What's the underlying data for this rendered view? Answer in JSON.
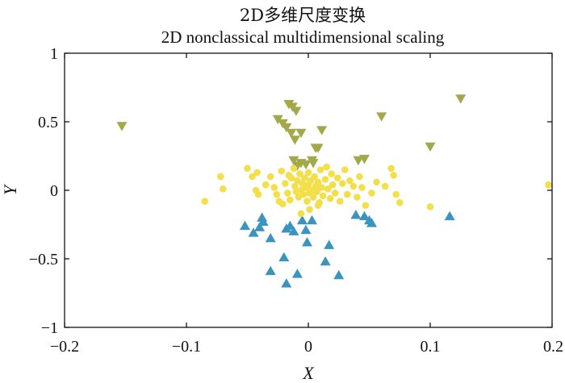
{
  "chart_data": {
    "type": "scatter",
    "title": "2D多维尺度变换",
    "subtitle": "2D nonclassical multidimensional scaling",
    "xlabel": "X",
    "ylabel": "Y",
    "xlim": [
      -0.2,
      0.2
    ],
    "ylim": [
      -1,
      1
    ],
    "xticks": [
      -0.2,
      -0.1,
      0,
      0.1,
      0.2
    ],
    "xtick_labels": [
      "−0.2",
      "−0.1",
      "0",
      "0.1",
      "0.2"
    ],
    "yticks": [
      -1,
      -0.5,
      0,
      0.5,
      1
    ],
    "ytick_labels": [
      "−1",
      "−0.5",
      "0",
      "0.5",
      "1"
    ],
    "grid": false,
    "series": [
      {
        "marker": "triangle-down",
        "color": "#a3a84a",
        "points": [
          [
            -0.153,
            0.47
          ],
          [
            -0.016,
            0.63
          ],
          [
            -0.013,
            0.61
          ],
          [
            -0.01,
            0.58
          ],
          [
            -0.025,
            0.52
          ],
          [
            -0.021,
            0.49
          ],
          [
            -0.018,
            0.46
          ],
          [
            -0.014,
            0.42
          ],
          [
            -0.011,
            0.37
          ],
          [
            -0.006,
            0.42
          ],
          [
            0.011,
            0.44
          ],
          [
            0.008,
            0.31
          ],
          [
            0.006,
            0.31
          ],
          [
            -0.012,
            0.22
          ],
          [
            -0.006,
            0.2
          ],
          [
            -0.002,
            0.19
          ],
          [
            0.003,
            0.22
          ],
          [
            0.041,
            0.22
          ],
          [
            0.046,
            0.23
          ],
          [
            0.06,
            0.54
          ],
          [
            0.1,
            0.32
          ],
          [
            0.125,
            0.67
          ],
          [
            -0.009,
            0.18
          ],
          [
            0.004,
            0.2
          ]
        ]
      },
      {
        "marker": "triangle-up",
        "color": "#3b94bd",
        "points": [
          [
            -0.052,
            -0.26
          ],
          [
            -0.045,
            -0.31
          ],
          [
            -0.04,
            -0.27
          ],
          [
            -0.037,
            -0.23
          ],
          [
            -0.038,
            -0.2
          ],
          [
            -0.031,
            -0.35
          ],
          [
            -0.018,
            -0.28
          ],
          [
            -0.015,
            -0.26
          ],
          [
            -0.005,
            -0.22
          ],
          [
            -0.002,
            -0.29
          ],
          [
            0.003,
            -0.22
          ],
          [
            -0.001,
            -0.38
          ],
          [
            -0.012,
            -0.3
          ],
          [
            0.017,
            -0.4
          ],
          [
            0.014,
            -0.52
          ],
          [
            0.025,
            -0.62
          ],
          [
            -0.02,
            -0.49
          ],
          [
            -0.031,
            -0.59
          ],
          [
            -0.018,
            -0.68
          ],
          [
            -0.009,
            -0.61
          ],
          [
            0.039,
            -0.18
          ],
          [
            0.046,
            -0.19
          ],
          [
            0.05,
            -0.22
          ],
          [
            0.052,
            -0.24
          ],
          [
            0.116,
            -0.19
          ]
        ]
      },
      {
        "marker": "circle",
        "color": "#f2df4a",
        "points": [
          [
            -0.085,
            -0.08
          ],
          [
            -0.072,
            0.1
          ],
          [
            -0.07,
            0.01
          ],
          [
            -0.05,
            0.16
          ],
          [
            -0.046,
            0.1
          ],
          [
            -0.042,
            0.13
          ],
          [
            -0.043,
            0.0
          ],
          [
            -0.041,
            -0.03
          ],
          [
            -0.035,
            0.04
          ],
          [
            -0.031,
            0.1
          ],
          [
            -0.028,
            0.02
          ],
          [
            -0.026,
            -0.03
          ],
          [
            -0.024,
            -0.08
          ],
          [
            -0.022,
            0.14
          ],
          [
            -0.021,
            -0.1
          ],
          [
            -0.019,
            0.05
          ],
          [
            -0.017,
            -0.02
          ],
          [
            -0.015,
            -0.07
          ],
          [
            -0.014,
            0.09
          ],
          [
            -0.012,
            0.16
          ],
          [
            -0.011,
            0.03
          ],
          [
            -0.01,
            -0.01
          ],
          [
            -0.009,
            0.07
          ],
          [
            -0.008,
            -0.05
          ],
          [
            -0.007,
            0.12
          ],
          [
            -0.006,
            0.0
          ],
          [
            -0.005,
            0.05
          ],
          [
            -0.004,
            -0.03
          ],
          [
            -0.003,
            0.09
          ],
          [
            -0.002,
            0.02
          ],
          [
            -0.001,
            -0.08
          ],
          [
            0.0,
            0.04
          ],
          [
            0.0,
            0.13
          ],
          [
            0.001,
            -0.02
          ],
          [
            0.002,
            0.07
          ],
          [
            0.003,
            0.0
          ],
          [
            0.004,
            -0.05
          ],
          [
            0.005,
            0.1
          ],
          [
            0.006,
            0.03
          ],
          [
            0.007,
            -0.01
          ],
          [
            0.008,
            0.06
          ],
          [
            0.009,
            -0.09
          ],
          [
            0.01,
            0.15
          ],
          [
            0.011,
            0.02
          ],
          [
            0.012,
            -0.04
          ],
          [
            0.014,
            0.08
          ],
          [
            0.016,
            0.01
          ],
          [
            0.018,
            -0.06
          ],
          [
            0.019,
            0.12
          ],
          [
            0.02,
            0.04
          ],
          [
            0.022,
            -0.02
          ],
          [
            0.024,
            0.09
          ],
          [
            0.026,
            -0.08
          ],
          [
            0.028,
            0.05
          ],
          [
            0.03,
            0.15
          ],
          [
            0.032,
            -0.03
          ],
          [
            0.034,
            0.07
          ],
          [
            0.037,
            0.03
          ],
          [
            0.04,
            -0.05
          ],
          [
            0.042,
            0.1
          ],
          [
            0.044,
            0.02
          ],
          [
            0.047,
            -0.11
          ],
          [
            0.052,
            -0.02
          ],
          [
            0.056,
            0.06
          ],
          [
            0.063,
            0.03
          ],
          [
            0.068,
            0.16
          ],
          [
            0.07,
            0.11
          ],
          [
            0.072,
            -0.03
          ],
          [
            0.075,
            -0.09
          ],
          [
            0.1,
            -0.12
          ],
          [
            0.197,
            0.04
          ],
          [
            -0.006,
            -0.17
          ],
          [
            0.001,
            -0.14
          ],
          [
            0.008,
            -0.11
          ],
          [
            0.015,
            0.17
          ],
          [
            -0.016,
            0.11
          ]
        ]
      }
    ]
  }
}
